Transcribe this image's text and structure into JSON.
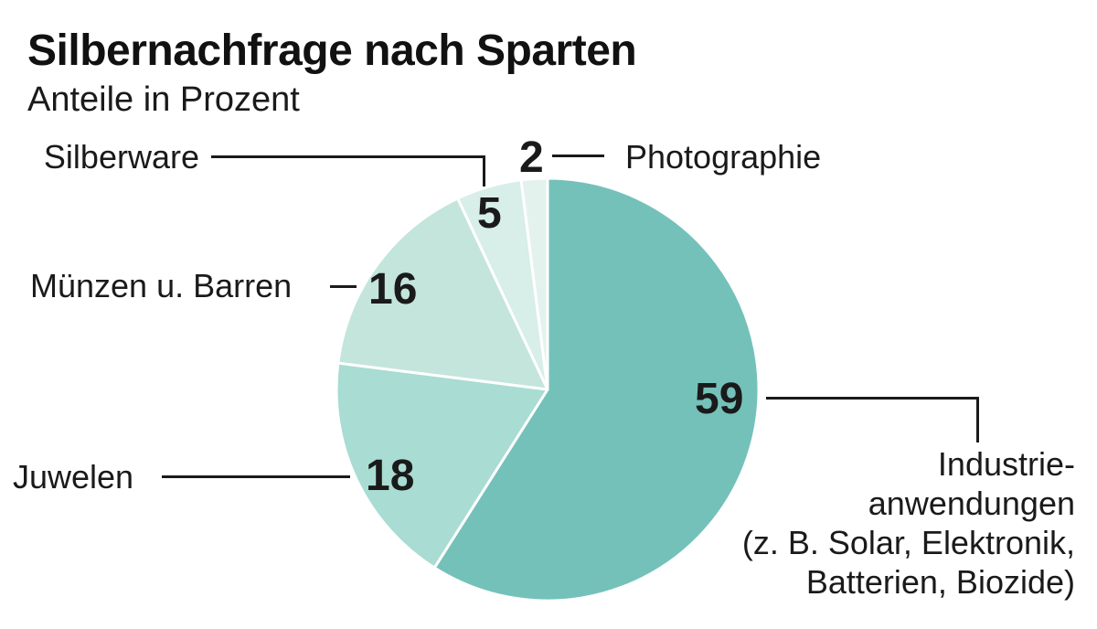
{
  "header": {
    "title": "Silbernachfrage nach Sparten",
    "subtitle": "Anteile in Prozent"
  },
  "chart_data": {
    "type": "pie",
    "title": "Silbernachfrage nach Sparten",
    "subtitle": "Anteile in Prozent",
    "unit": "Prozent",
    "start_angle_deg": 0,
    "direction": "clockwise",
    "total": 100,
    "segments": [
      {
        "label": "Industrieanwendungen (z. B. Solar, Elektronik, Batterien, Biozide)",
        "value": 59,
        "color": "#74c1ba"
      },
      {
        "label": "Juwelen",
        "value": 18,
        "color": "#a9dcd2"
      },
      {
        "label": "Münzen u. Barren",
        "value": 16,
        "color": "#c3e5dc"
      },
      {
        "label": "Silberware",
        "value": 5,
        "color": "#d8eee8"
      },
      {
        "label": "Photographie",
        "value": 2,
        "color": "#e4f2ee"
      }
    ],
    "divider_color": "#ffffff",
    "leader_line_color": "#1a1a1a"
  },
  "labels": {
    "silberware": "Silberware",
    "photographie": "Photographie",
    "muenzen": "Münzen u. Barren",
    "juwelen": "Juwelen",
    "industrie_line1": "Industrie-",
    "industrie_line2": "anwendungen",
    "industrie_line3": "(z. B. Solar, Elektronik,",
    "industrie_line4": "Batterien, Biozide)"
  }
}
